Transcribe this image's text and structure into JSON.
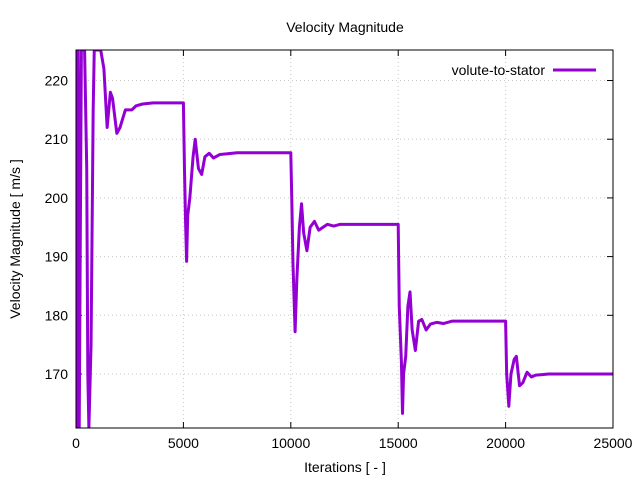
{
  "chart_data": {
    "type": "line",
    "title": "Velocity Magnitude",
    "xlabel": "Iterations [ - ]",
    "ylabel": "Velocity Magnitude [ m/s ]",
    "xlim": [
      0,
      25000
    ],
    "ylim": [
      160.8,
      225.2
    ],
    "xticks": [
      0,
      5000,
      10000,
      15000,
      20000,
      25000
    ],
    "yticks": [
      170,
      180,
      190,
      200,
      210,
      220
    ],
    "grid": true,
    "legend_position": "top-right",
    "series": [
      {
        "name": "volute-to-stator",
        "color": "#9400d3",
        "points": [
          [
            0,
            225.2
          ],
          [
            50,
            160.8
          ],
          [
            100,
            225.2
          ],
          [
            150,
            160.8
          ],
          [
            250,
            225.2
          ],
          [
            400,
            225.2
          ],
          [
            500,
            205
          ],
          [
            550,
            170
          ],
          [
            600,
            160.8
          ],
          [
            700,
            175
          ],
          [
            800,
            215
          ],
          [
            850,
            225.2
          ],
          [
            1000,
            225.2
          ],
          [
            1150,
            225.2
          ],
          [
            1300,
            222
          ],
          [
            1450,
            212
          ],
          [
            1600,
            218
          ],
          [
            1700,
            217
          ],
          [
            1900,
            211
          ],
          [
            2050,
            212
          ],
          [
            2300,
            215
          ],
          [
            2600,
            215
          ],
          [
            2800,
            215.7
          ],
          [
            3100,
            216
          ],
          [
            3600,
            216.2
          ],
          [
            5000,
            216.2
          ],
          [
            5050,
            205
          ],
          [
            5100,
            196
          ],
          [
            5150,
            189.2
          ],
          [
            5200,
            197
          ],
          [
            5300,
            200
          ],
          [
            5450,
            207
          ],
          [
            5550,
            210
          ],
          [
            5700,
            205
          ],
          [
            5850,
            204
          ],
          [
            6000,
            207
          ],
          [
            6200,
            207.6
          ],
          [
            6400,
            206.8
          ],
          [
            6700,
            207.4
          ],
          [
            7000,
            207.5
          ],
          [
            7500,
            207.7
          ],
          [
            10000,
            207.7
          ],
          [
            10050,
            199
          ],
          [
            10100,
            189
          ],
          [
            10200,
            177.2
          ],
          [
            10280,
            186
          ],
          [
            10400,
            195
          ],
          [
            10500,
            199
          ],
          [
            10600,
            194
          ],
          [
            10750,
            191
          ],
          [
            10900,
            195
          ],
          [
            11100,
            196
          ],
          [
            11300,
            194.5
          ],
          [
            11500,
            195
          ],
          [
            11700,
            195.5
          ],
          [
            12000,
            195.2
          ],
          [
            12300,
            195.5
          ],
          [
            15000,
            195.5
          ],
          [
            15050,
            181.5
          ],
          [
            15150,
            172
          ],
          [
            15200,
            163.3
          ],
          [
            15250,
            170
          ],
          [
            15350,
            173
          ],
          [
            15450,
            181.5
          ],
          [
            15550,
            184
          ],
          [
            15650,
            177.5
          ],
          [
            15800,
            174
          ],
          [
            15950,
            179
          ],
          [
            16100,
            179.3
          ],
          [
            16300,
            177.5
          ],
          [
            16500,
            178.5
          ],
          [
            16800,
            178.8
          ],
          [
            17100,
            178.6
          ],
          [
            17500,
            179
          ],
          [
            20000,
            179
          ],
          [
            20050,
            170
          ],
          [
            20150,
            164.5
          ],
          [
            20250,
            170
          ],
          [
            20400,
            172.5
          ],
          [
            20500,
            173
          ],
          [
            20650,
            168
          ],
          [
            20800,
            168.5
          ],
          [
            21000,
            170.3
          ],
          [
            21200,
            169.5
          ],
          [
            21400,
            169.8
          ],
          [
            21700,
            169.9
          ],
          [
            22000,
            170
          ],
          [
            25000,
            170
          ]
        ]
      }
    ]
  }
}
